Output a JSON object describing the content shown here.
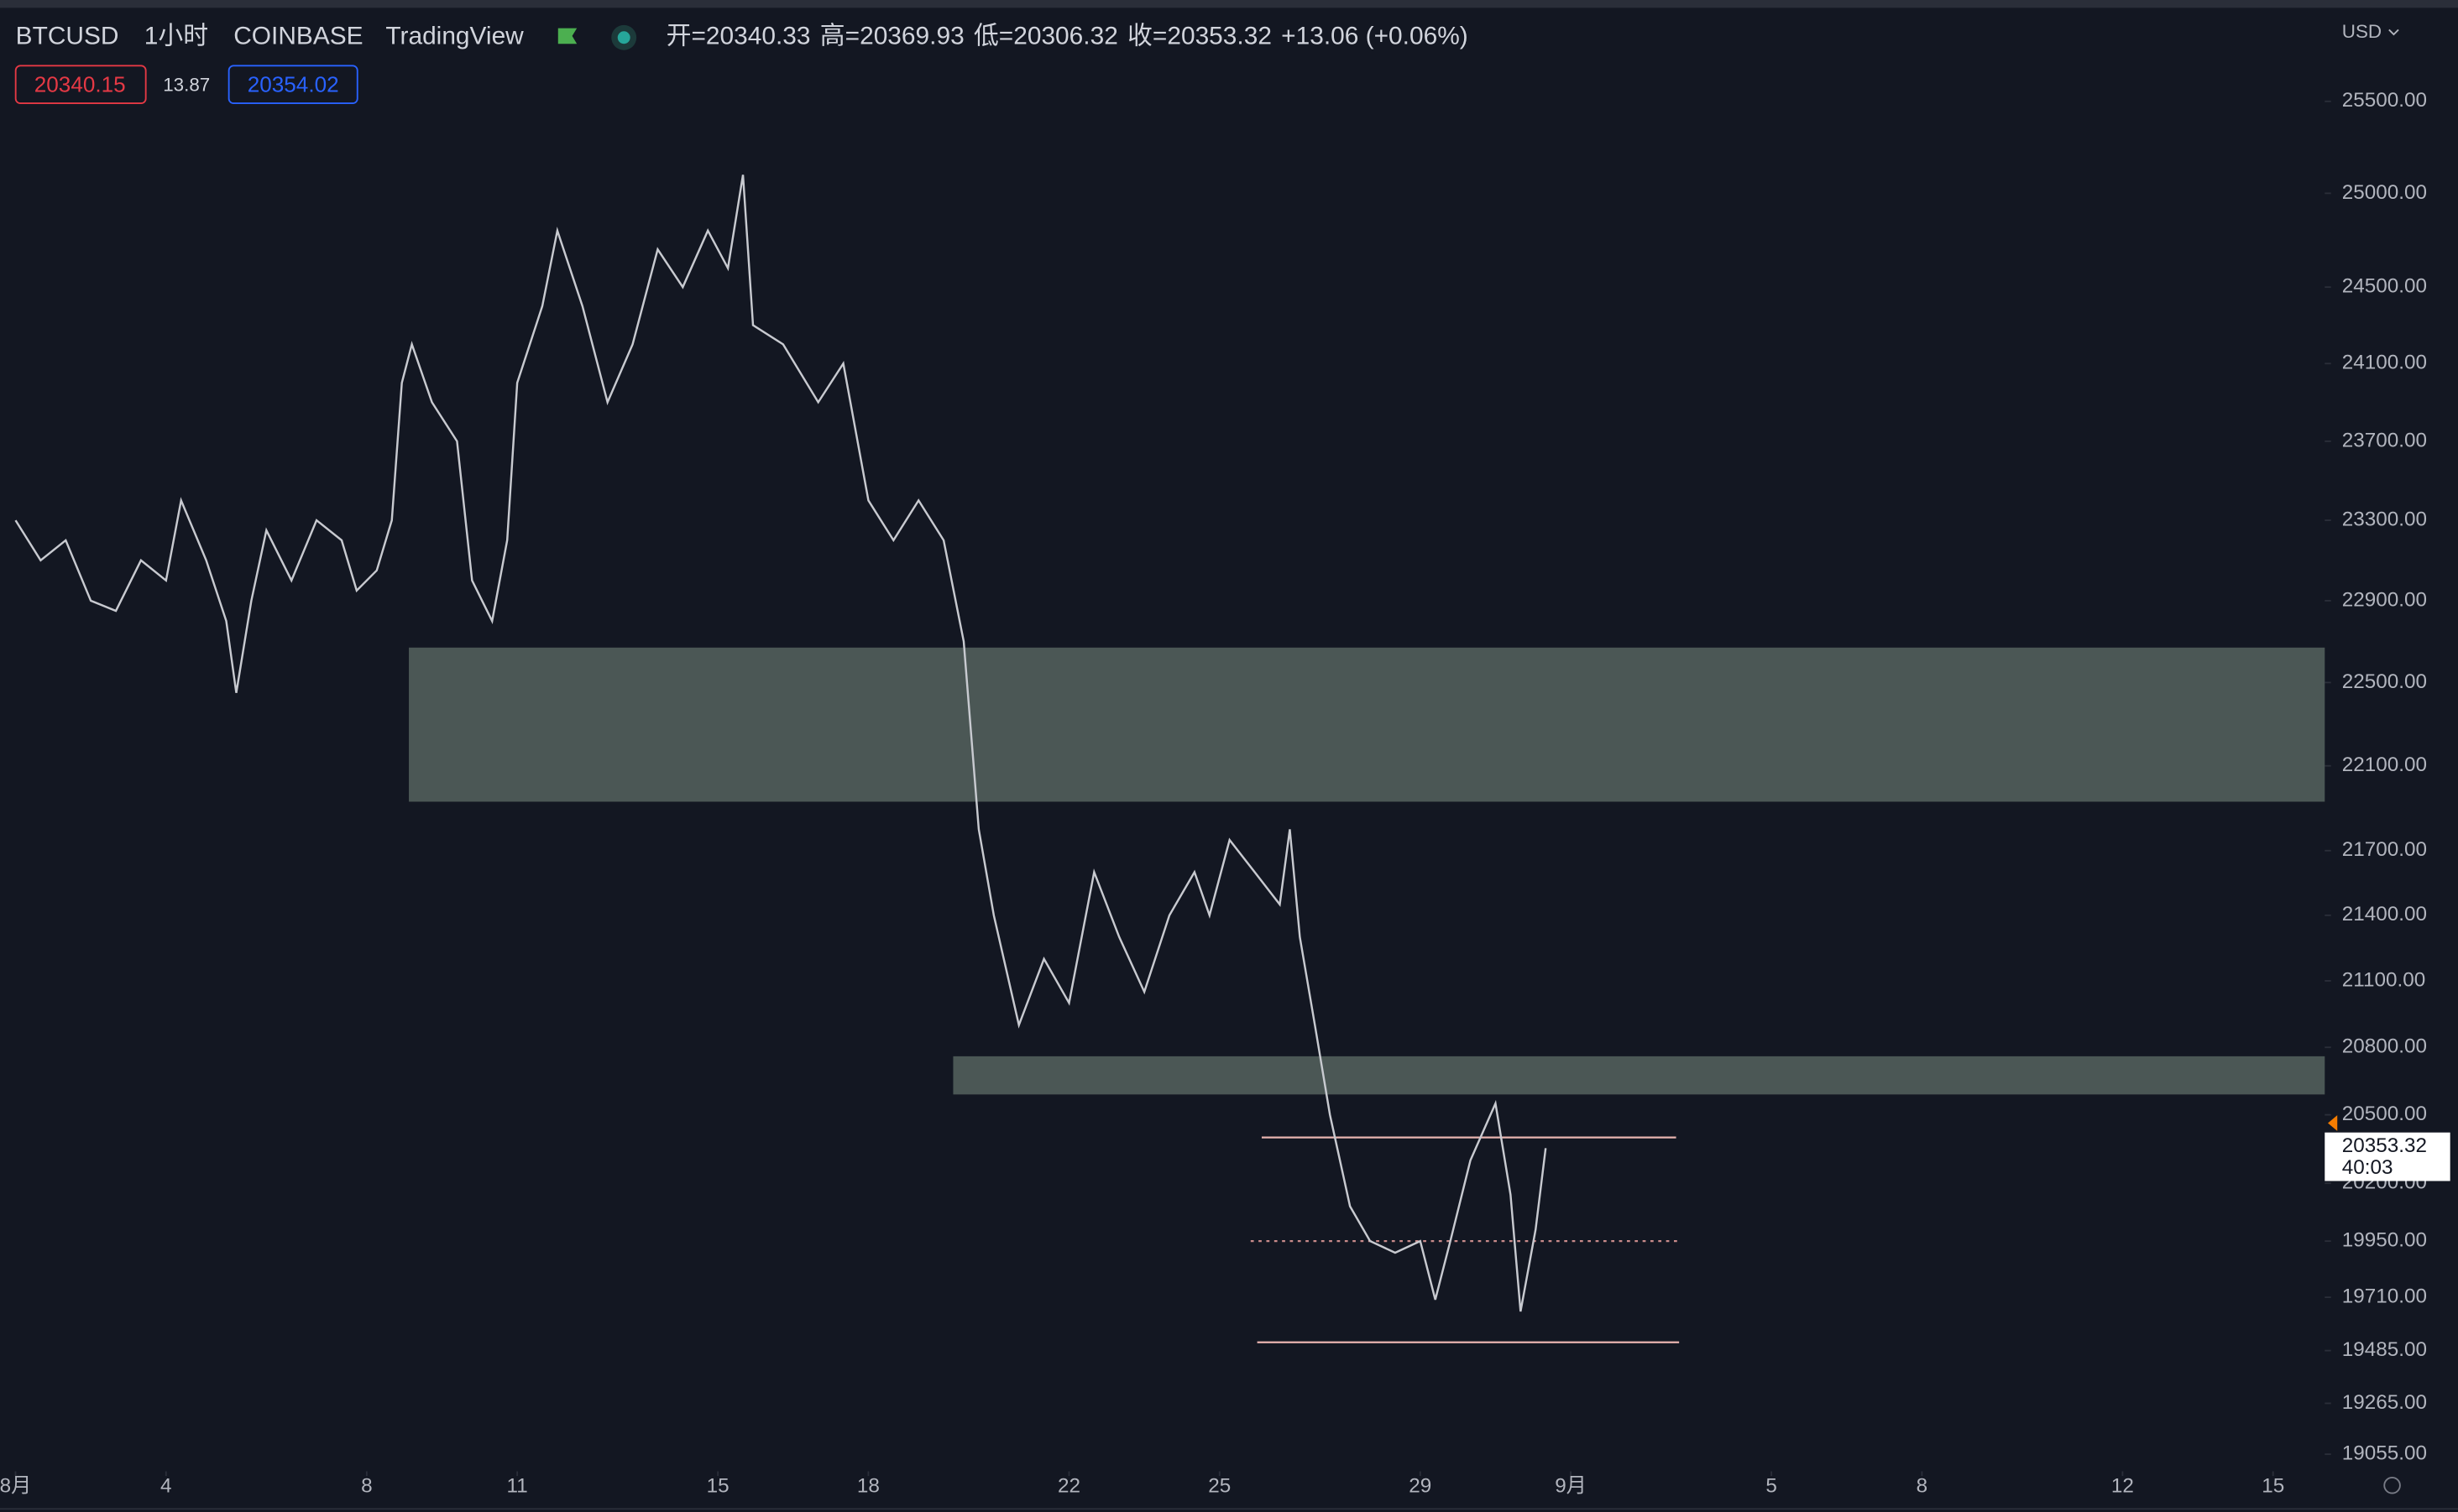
{
  "header": {
    "symbol": "BTCUSD",
    "interval": "1小时",
    "exchange": "COINBASE",
    "source": "TradingView",
    "ohlc": [
      {
        "label": "开=",
        "value": 20340.33
      },
      {
        "label": "高=",
        "value": 20369.93
      },
      {
        "label": "低=",
        "value": 20306.32
      },
      {
        "label": "收=",
        "value": 20353.32
      }
    ],
    "change": "+13.06 (+0.06%)",
    "bid": "20340.15",
    "spread": "13.87",
    "ask": "20354.02",
    "currency": "USD"
  },
  "chart_data": {
    "type": "line",
    "log_scale": true,
    "background": "#131722",
    "xlim": [
      -0.31,
      46.03
    ],
    "ylim": [
      18985,
      26010
    ],
    "xticks": [
      {
        "value": 0,
        "label": "8月"
      },
      {
        "value": 3,
        "label": "4"
      },
      {
        "value": 7,
        "label": "8"
      },
      {
        "value": 10,
        "label": "11"
      },
      {
        "value": 14,
        "label": "15"
      },
      {
        "value": 17,
        "label": "18"
      },
      {
        "value": 21,
        "label": "22"
      },
      {
        "value": 24,
        "label": "25"
      },
      {
        "value": 28,
        "label": "29"
      },
      {
        "value": 31,
        "label": "9月"
      },
      {
        "value": 35,
        "label": "5"
      },
      {
        "value": 38,
        "label": "8"
      },
      {
        "value": 42,
        "label": "12"
      },
      {
        "value": 45,
        "label": "15"
      }
    ],
    "yticks": [
      {
        "value": 25500,
        "label": "25500.00"
      },
      {
        "value": 25000,
        "label": "25000.00"
      },
      {
        "value": 24500,
        "label": "24500.00"
      },
      {
        "value": 24100,
        "label": "24100.00"
      },
      {
        "value": 23700,
        "label": "23700.00"
      },
      {
        "value": 23300,
        "label": "23300.00"
      },
      {
        "value": 22900,
        "label": "22900.00"
      },
      {
        "value": 22500,
        "label": "22500.00"
      },
      {
        "value": 22100,
        "label": "22100.00"
      },
      {
        "value": 21700,
        "label": "21700.00"
      },
      {
        "value": 21400,
        "label": "21400.00"
      },
      {
        "value": 21100,
        "label": "21100.00"
      },
      {
        "value": 20800,
        "label": "20800.00"
      },
      {
        "value": 20500,
        "label": "20500.00"
      },
      {
        "value": 20200,
        "label": "20200.00"
      },
      {
        "value": 19950,
        "label": "19950.00"
      },
      {
        "value": 19710,
        "label": "19710.00"
      },
      {
        "value": 19485,
        "label": "19485.00"
      },
      {
        "value": 19265,
        "label": "19265.00"
      },
      {
        "value": 19055,
        "label": "19055.00"
      }
    ],
    "series": [
      {
        "name": "BTCUSD",
        "color": "#c8cad0",
        "x": [
          0,
          0.5,
          1,
          1.5,
          2,
          2.5,
          3,
          3.3,
          3.8,
          4.2,
          4.4,
          4.7,
          5,
          5.5,
          6,
          6.5,
          6.8,
          7.2,
          7.5,
          7.7,
          7.9,
          8.3,
          8.8,
          9.1,
          9.5,
          9.8,
          10,
          10.5,
          10.8,
          11.3,
          11.8,
          12.3,
          12.8,
          13.3,
          13.8,
          14.2,
          14.5,
          14.7,
          15.3,
          16,
          16.5,
          17,
          17.5,
          18,
          18.5,
          18.9,
          19.2,
          19.5,
          20,
          20.5,
          21,
          21.5,
          22,
          22.5,
          23,
          23.5,
          23.8,
          24.2,
          24.7,
          25.2,
          25.4,
          25.6,
          25.9,
          26.2,
          26.6,
          27,
          27.5,
          28,
          28.3,
          28.6,
          29,
          29.5,
          29.8,
          30,
          30.3,
          30.5
        ],
        "values": [
          23300,
          23100,
          23200,
          22900,
          22850,
          23100,
          23000,
          23400,
          23100,
          22800,
          22450,
          22900,
          23250,
          23000,
          23300,
          23200,
          22950,
          23050,
          23300,
          24000,
          24200,
          23900,
          23700,
          23000,
          22800,
          23200,
          24000,
          24400,
          24800,
          24400,
          23900,
          24200,
          24700,
          24500,
          24800,
          24600,
          25100,
          24300,
          24200,
          23900,
          24100,
          23400,
          23200,
          23400,
          23200,
          22700,
          21800,
          21400,
          20900,
          21200,
          21000,
          21600,
          21300,
          21050,
          21400,
          21600,
          21400,
          21750,
          21600,
          21450,
          21800,
          21300,
          20900,
          20500,
          20100,
          19950,
          19900,
          19950,
          19700,
          19950,
          20300,
          20550,
          20150,
          19650,
          20000,
          20353.32
        ]
      }
    ],
    "zones": [
      {
        "x": [
          7.84,
          46.03
        ],
        "y": [
          21930,
          22670
        ],
        "color": "#4b5755"
      },
      {
        "x": [
          18.69,
          46.03
        ],
        "y": [
          20590,
          20760
        ],
        "color": "#4b5755"
      }
    ],
    "levels": [
      {
        "x": [
          24.84,
          33.1
        ],
        "value": 20400,
        "dashed": false,
        "color": "#e8b4b0"
      },
      {
        "x": [
          24.62,
          33.19
        ],
        "value": 19950,
        "dashed": true,
        "color": "#c98b8b"
      },
      {
        "x": [
          24.75,
          33.16
        ],
        "value": 19520,
        "dashed": false,
        "color": "#e8b4b0"
      }
    ],
    "last_price": {
      "value": 20353.32,
      "countdown": "40:03"
    }
  }
}
